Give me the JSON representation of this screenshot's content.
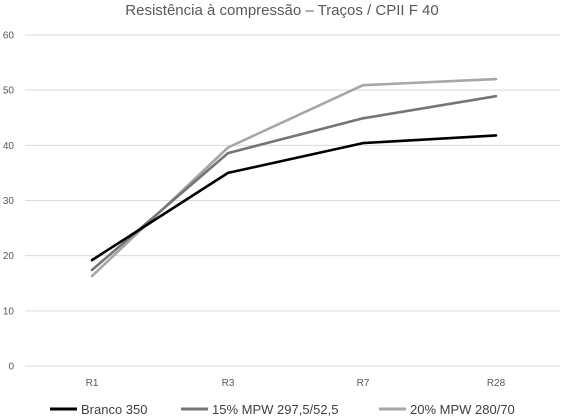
{
  "chart_data": {
    "type": "line",
    "title": "Resistência à compressão – Traços / CPII F 40",
    "xlabel": "",
    "ylabel": "",
    "categories": [
      "R1",
      "R3",
      "R7",
      "R28"
    ],
    "ylim": [
      0,
      60
    ],
    "yticks": [
      "0",
      "10",
      "20",
      "30",
      "40",
      "50",
      "60"
    ],
    "grid": true,
    "legend_position": "bottom",
    "series": [
      {
        "name": "Branco 350",
        "values": [
          19.2,
          35,
          40.4,
          41.8
        ],
        "color": "#000000"
      },
      {
        "name": "15% MPW 297,5/52,5",
        "values": [
          17.4,
          38.6,
          44.9,
          48.9
        ],
        "color": "#757575"
      },
      {
        "name": "20% MPW 280/70",
        "values": [
          16.3,
          39.6,
          50.9,
          52.0
        ],
        "color": "#a6a6a6"
      }
    ]
  }
}
